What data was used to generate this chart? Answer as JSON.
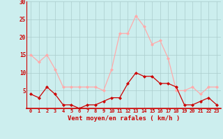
{
  "hours": [
    0,
    1,
    2,
    3,
    4,
    5,
    6,
    7,
    8,
    9,
    10,
    11,
    12,
    13,
    14,
    15,
    16,
    17,
    18,
    19,
    20,
    21,
    22,
    23
  ],
  "vent_moyen": [
    4,
    3,
    6,
    4,
    1,
    1,
    0,
    1,
    1,
    2,
    3,
    3,
    7,
    10,
    9,
    9,
    7,
    7,
    6,
    1,
    1,
    2,
    3,
    1
  ],
  "rafales": [
    15,
    13,
    15,
    11,
    6,
    6,
    6,
    6,
    6,
    5,
    11,
    21,
    21,
    26,
    23,
    18,
    19,
    14,
    5,
    5,
    6,
    4,
    6,
    6
  ],
  "color_moyen": "#cc0000",
  "color_rafales": "#ffaaaa",
  "bg_color": "#cceeee",
  "grid_color": "#aacccc",
  "xlabel": "Vent moyen/en rafales ( km/h )",
  "ylim": [
    0,
    30
  ],
  "yticks": [
    0,
    5,
    10,
    15,
    20,
    25,
    30
  ]
}
